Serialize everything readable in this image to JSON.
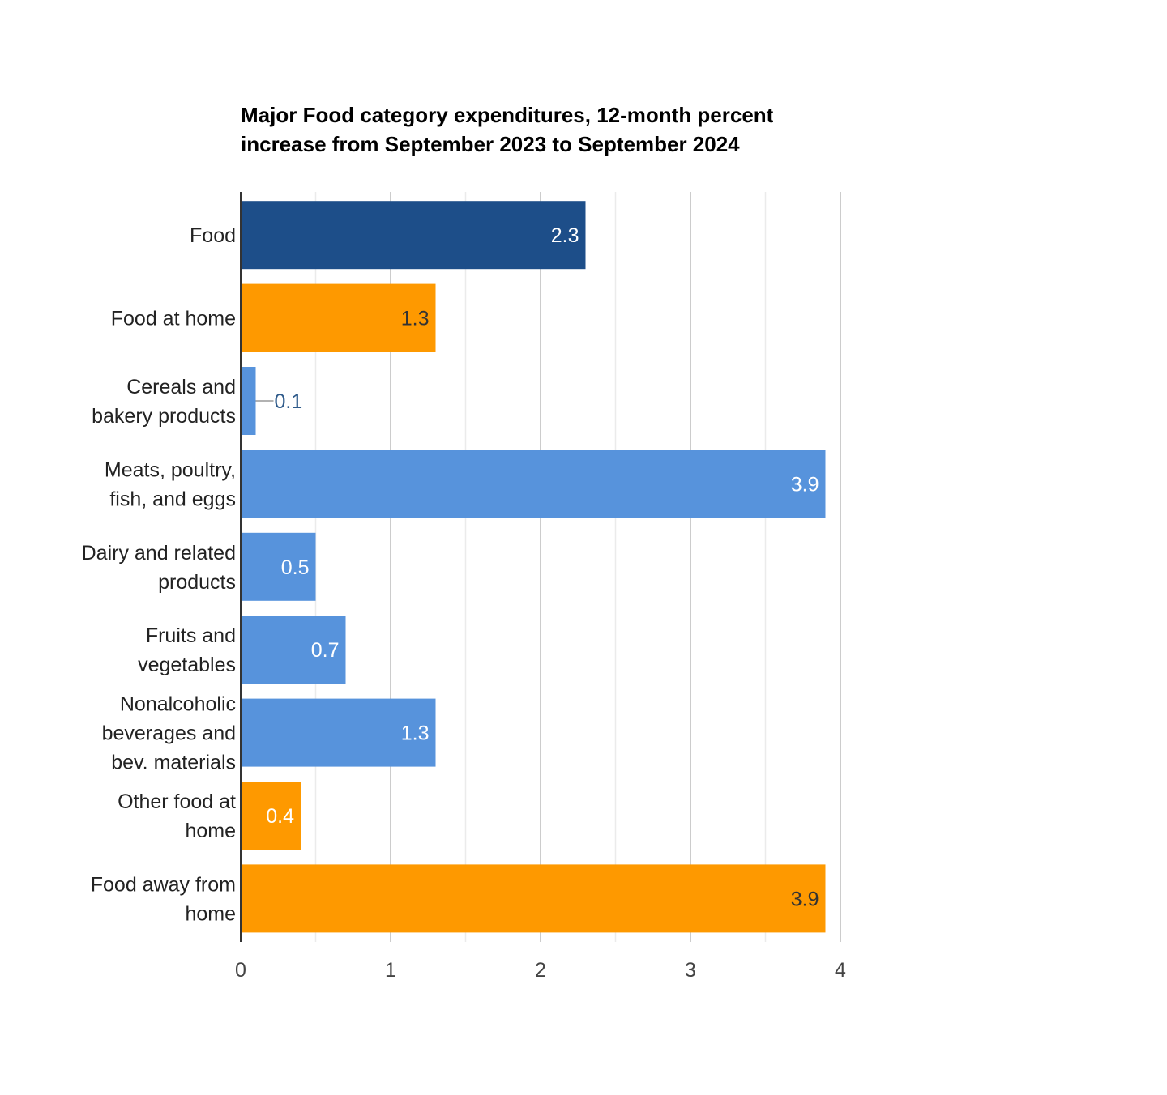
{
  "chart_data": {
    "type": "bar",
    "orientation": "horizontal",
    "title_lines": [
      "Major Food category expenditures, 12-month percent",
      "increase from September 2023 to September 2024"
    ],
    "categories": [
      [
        "Food"
      ],
      [
        "Food at home"
      ],
      [
        "Cereals and",
        "bakery products"
      ],
      [
        "Meats, poultry,",
        "fish, and eggs"
      ],
      [
        "Dairy and related",
        "products"
      ],
      [
        "Fruits and",
        "vegetables"
      ],
      [
        "Nonalcoholic",
        "beverages and",
        "bev. materials"
      ],
      [
        "Other food at",
        "home"
      ],
      [
        "Food away from",
        "home"
      ]
    ],
    "values": [
      2.3,
      1.3,
      0.1,
      3.9,
      0.5,
      0.7,
      1.3,
      0.4,
      3.9
    ],
    "data_labels": [
      "2.3",
      "1.3",
      "0.1",
      "3.9",
      "0.5",
      "0.7",
      "1.3",
      "0.4",
      "3.9"
    ],
    "bar_colors": [
      "#1d4e89",
      "#fe9900",
      "#5793dc",
      "#5793dc",
      "#5793dc",
      "#5793dc",
      "#5793dc",
      "#fe9900",
      "#fe9900"
    ],
    "label_colors": [
      "#ffffff",
      "#333333",
      "#2e5a8a",
      "#ffffff",
      "#ffffff",
      "#ffffff",
      "#ffffff",
      "#ffffff",
      "#333333"
    ],
    "xlim": [
      0,
      4
    ],
    "x_ticks": [
      "0",
      "1",
      "2",
      "3",
      "4"
    ],
    "minor_gridlines": true,
    "grid": true,
    "legend": "none",
    "xlabel": "",
    "ylabel": ""
  }
}
